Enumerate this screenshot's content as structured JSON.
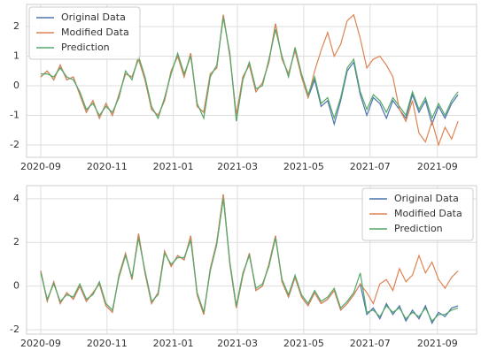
{
  "chart_data": [
    {
      "type": "line",
      "x": [
        0,
        6,
        12,
        18,
        24,
        30,
        36,
        42,
        48,
        54,
        60,
        66,
        72,
        78,
        84,
        90,
        96,
        102,
        108,
        114,
        120,
        126,
        132,
        138,
        144,
        150,
        156,
        162,
        168,
        174,
        180,
        186,
        192,
        198,
        204,
        210,
        216,
        222,
        228,
        234,
        240,
        246,
        252,
        258,
        264,
        270,
        276,
        282,
        288,
        294,
        300,
        306,
        312,
        318,
        324,
        330,
        336,
        342,
        348,
        354,
        360,
        366,
        372,
        378,
        384
      ],
      "series": [
        {
          "name": "Original Data",
          "color": "#4c72b0",
          "values": [
            0.3,
            0.5,
            0.2,
            0.7,
            0.2,
            0.3,
            -0.3,
            -0.9,
            -0.5,
            -1.1,
            -0.6,
            -1.0,
            -0.3,
            0.4,
            0.3,
            0.9,
            0.2,
            -0.8,
            -1.0,
            -0.5,
            0.5,
            1.0,
            0.3,
            1.1,
            -0.7,
            -0.9,
            0.4,
            0.6,
            2.4,
            1.0,
            -1.0,
            0.3,
            0.7,
            -0.2,
            0.1,
            0.8,
            2.1,
            0.9,
            0.4,
            1.2,
            0.3,
            -0.4,
            0.2,
            -0.7,
            -0.5,
            -1.3,
            -0.5,
            0.5,
            0.8,
            -0.3,
            -1.0,
            -0.4,
            -0.6,
            -1.1,
            -0.5,
            -0.8,
            -1.1,
            -0.3,
            -0.9,
            -0.5,
            -1.3,
            -0.7,
            -1.1,
            -0.6,
            -0.3
          ]
        },
        {
          "name": "Modified Data",
          "color": "#dd8452",
          "values": [
            0.3,
            0.5,
            0.2,
            0.7,
            0.2,
            0.3,
            -0.3,
            -0.9,
            -0.5,
            -1.1,
            -0.6,
            -1.0,
            -0.3,
            0.4,
            0.3,
            0.9,
            0.2,
            -0.8,
            -1.0,
            -0.5,
            0.5,
            1.0,
            0.3,
            1.1,
            -0.7,
            -0.9,
            0.4,
            0.6,
            2.4,
            1.0,
            -1.0,
            0.3,
            0.7,
            -0.2,
            0.1,
            0.8,
            2.1,
            0.9,
            0.4,
            1.2,
            0.3,
            -0.4,
            0.5,
            1.2,
            1.8,
            1.0,
            1.4,
            2.2,
            2.4,
            1.6,
            0.6,
            0.9,
            1.0,
            0.7,
            0.3,
            -0.8,
            -1.2,
            -0.5,
            -1.6,
            -1.9,
            -1.2,
            -2.0,
            -1.4,
            -1.8,
            -1.2
          ]
        },
        {
          "name": "Prediction",
          "color": "#55a868",
          "values": [
            0.4,
            0.4,
            0.3,
            0.6,
            0.3,
            0.2,
            -0.2,
            -0.8,
            -0.6,
            -1.0,
            -0.7,
            -0.9,
            -0.4,
            0.5,
            0.2,
            1.0,
            0.3,
            -0.7,
            -1.1,
            -0.4,
            0.4,
            1.1,
            0.4,
            1.0,
            -0.6,
            -1.1,
            0.3,
            0.7,
            2.3,
            1.1,
            -1.2,
            0.2,
            0.8,
            -0.1,
            0.0,
            0.9,
            1.9,
            1.0,
            0.3,
            1.3,
            0.4,
            -0.3,
            0.3,
            -0.6,
            -0.4,
            -1.1,
            -0.4,
            0.6,
            0.9,
            -0.2,
            -0.8,
            -0.3,
            -0.5,
            -0.9,
            -0.4,
            -0.7,
            -1.0,
            -0.2,
            -0.8,
            -0.4,
            -1.1,
            -0.6,
            -1.0,
            -0.5,
            -0.2
          ]
        }
      ],
      "xlim": [
        -13,
        401
      ],
      "ylim": [
        -2.42,
        2.75
      ],
      "xticks": [
        {
          "value": 0,
          "label": "2020-09"
        },
        {
          "value": 61,
          "label": "2020-11"
        },
        {
          "value": 122,
          "label": "2021-01"
        },
        {
          "value": 181,
          "label": "2021-03"
        },
        {
          "value": 242,
          "label": "2021-05"
        },
        {
          "value": 303,
          "label": "2021-07"
        },
        {
          "value": 365,
          "label": "2021-09"
        }
      ],
      "yticks": [
        -2,
        -1,
        0,
        1,
        2
      ],
      "grid": true,
      "legend": "top-left"
    },
    {
      "type": "line",
      "x": [
        0,
        6,
        12,
        18,
        24,
        30,
        36,
        42,
        48,
        54,
        60,
        66,
        72,
        78,
        84,
        90,
        96,
        102,
        108,
        114,
        120,
        126,
        132,
        138,
        144,
        150,
        156,
        162,
        168,
        174,
        180,
        186,
        192,
        198,
        204,
        210,
        216,
        222,
        228,
        234,
        240,
        246,
        252,
        258,
        264,
        270,
        276,
        282,
        288,
        294,
        300,
        306,
        312,
        318,
        324,
        330,
        336,
        342,
        348,
        354,
        360,
        366,
        372,
        378,
        384
      ],
      "series": [
        {
          "name": "Original Data",
          "color": "#4c72b0",
          "values": [
            0.7,
            -0.7,
            0.2,
            -0.8,
            -0.3,
            -0.6,
            0.0,
            -0.7,
            -0.3,
            0.1,
            -0.9,
            -1.2,
            0.5,
            1.5,
            0.3,
            2.4,
            0.6,
            -0.8,
            -0.3,
            1.6,
            0.9,
            1.4,
            1.2,
            2.3,
            -0.4,
            -1.3,
            0.8,
            2.0,
            4.2,
            1.0,
            -1.0,
            0.5,
            1.5,
            -0.2,
            0.0,
            1.0,
            2.3,
            0.2,
            -0.5,
            0.4,
            -0.5,
            -0.9,
            -0.3,
            -0.8,
            -0.6,
            -0.2,
            -1.1,
            -0.8,
            -0.4,
            0.1,
            -1.3,
            -1.0,
            -1.5,
            -0.8,
            -1.3,
            -0.9,
            -1.6,
            -1.1,
            -1.5,
            -0.9,
            -1.7,
            -1.2,
            -1.4,
            -1.0,
            -0.9
          ]
        },
        {
          "name": "Modified Data",
          "color": "#dd8452",
          "values": [
            0.7,
            -0.7,
            0.2,
            -0.8,
            -0.3,
            -0.6,
            0.0,
            -0.7,
            -0.3,
            0.1,
            -0.9,
            -1.2,
            0.5,
            1.5,
            0.3,
            2.4,
            0.6,
            -0.8,
            -0.3,
            1.6,
            0.9,
            1.4,
            1.2,
            2.3,
            -0.4,
            -1.3,
            0.8,
            2.0,
            4.2,
            1.0,
            -1.0,
            0.5,
            1.5,
            -0.2,
            0.0,
            1.0,
            2.3,
            0.2,
            -0.5,
            0.4,
            -0.5,
            -0.9,
            -0.3,
            -0.8,
            -0.6,
            -0.2,
            -1.1,
            -0.8,
            -0.4,
            0.1,
            -0.3,
            -0.8,
            0.1,
            0.3,
            -0.2,
            0.8,
            0.2,
            0.5,
            1.4,
            0.6,
            1.1,
            0.3,
            -0.1,
            0.4,
            0.7
          ]
        },
        {
          "name": "Prediction",
          "color": "#55a868",
          "values": [
            0.6,
            -0.6,
            0.1,
            -0.7,
            -0.4,
            -0.5,
            0.1,
            -0.6,
            -0.4,
            0.2,
            -0.8,
            -1.1,
            0.4,
            1.4,
            0.4,
            2.2,
            0.7,
            -0.7,
            -0.4,
            1.5,
            1.0,
            1.3,
            1.3,
            2.1,
            -0.3,
            -1.2,
            0.7,
            1.9,
            4.0,
            1.1,
            -0.9,
            0.6,
            1.4,
            -0.1,
            0.1,
            0.9,
            2.2,
            0.3,
            -0.4,
            0.5,
            -0.4,
            -0.8,
            -0.2,
            -0.7,
            -0.5,
            -0.1,
            -1.0,
            -0.7,
            -0.3,
            0.6,
            -1.2,
            -1.1,
            -1.4,
            -0.9,
            -1.2,
            -1.0,
            -1.5,
            -1.2,
            -1.4,
            -1.0,
            -1.6,
            -1.3,
            -1.3,
            -1.1,
            -1.0
          ]
        }
      ],
      "xlim": [
        -13,
        401
      ],
      "ylim": [
        -2.2,
        4.6
      ],
      "xticks": [
        {
          "value": 0,
          "label": "2020-09"
        },
        {
          "value": 61,
          "label": "2020-11"
        },
        {
          "value": 122,
          "label": "2021-01"
        },
        {
          "value": 181,
          "label": "2021-03"
        },
        {
          "value": 242,
          "label": "2021-05"
        },
        {
          "value": 303,
          "label": "2021-07"
        },
        {
          "value": 365,
          "label": "2021-09"
        }
      ],
      "yticks": [
        -2,
        0,
        2,
        4
      ],
      "grid": true,
      "legend": "top-right"
    }
  ]
}
